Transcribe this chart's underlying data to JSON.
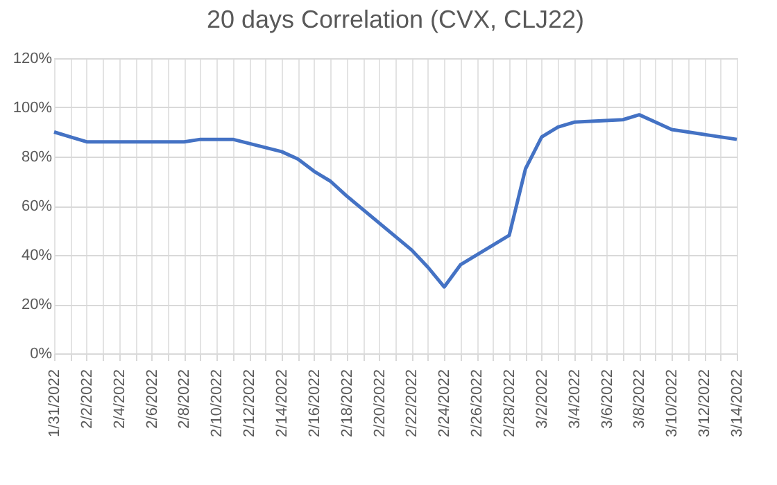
{
  "chart_data": {
    "type": "line",
    "title": "20 days Correlation (CVX, CLJ22)",
    "x": [
      "2022-01-31",
      "2022-02-01",
      "2022-02-02",
      "2022-02-03",
      "2022-02-04",
      "2022-02-07",
      "2022-02-08",
      "2022-02-09",
      "2022-02-10",
      "2022-02-11",
      "2022-02-14",
      "2022-02-15",
      "2022-02-16",
      "2022-02-17",
      "2022-02-18",
      "2022-02-22",
      "2022-02-23",
      "2022-02-24",
      "2022-02-25",
      "2022-02-28",
      "2022-03-01",
      "2022-03-02",
      "2022-03-03",
      "2022-03-04",
      "2022-03-07",
      "2022-03-08",
      "2022-03-09",
      "2022-03-10",
      "2022-03-11",
      "2022-03-14"
    ],
    "series": [
      {
        "color": "#4472c4",
        "values": [
          90,
          88,
          86,
          86,
          86,
          86,
          86,
          87,
          87,
          87,
          82,
          79,
          74,
          70,
          64,
          42,
          35,
          27,
          36,
          48,
          75,
          88,
          92,
          94,
          95,
          97,
          94,
          91,
          90,
          87
        ]
      }
    ],
    "xlim": [
      "2022-01-31",
      "2022-03-14"
    ],
    "xticks": [
      {
        "value": "2022-01-31",
        "label": "1/31/2022"
      },
      {
        "value": "2022-02-01",
        "label": null
      },
      {
        "value": "2022-02-02",
        "label": "2/2/2022"
      },
      {
        "value": "2022-02-03",
        "label": null
      },
      {
        "value": "2022-02-04",
        "label": "2/4/2022"
      },
      {
        "value": "2022-02-05",
        "label": null
      },
      {
        "value": "2022-02-06",
        "label": "2/6/2022"
      },
      {
        "value": "2022-02-07",
        "label": null
      },
      {
        "value": "2022-02-08",
        "label": "2/8/2022"
      },
      {
        "value": "2022-02-09",
        "label": null
      },
      {
        "value": "2022-02-10",
        "label": "2/10/2022"
      },
      {
        "value": "2022-02-11",
        "label": null
      },
      {
        "value": "2022-02-12",
        "label": "2/12/2022"
      },
      {
        "value": "2022-02-13",
        "label": null
      },
      {
        "value": "2022-02-14",
        "label": "2/14/2022"
      },
      {
        "value": "2022-02-15",
        "label": null
      },
      {
        "value": "2022-02-16",
        "label": "2/16/2022"
      },
      {
        "value": "2022-02-17",
        "label": null
      },
      {
        "value": "2022-02-18",
        "label": "2/18/2022"
      },
      {
        "value": "2022-02-19",
        "label": null
      },
      {
        "value": "2022-02-20",
        "label": "2/20/2022"
      },
      {
        "value": "2022-02-21",
        "label": null
      },
      {
        "value": "2022-02-22",
        "label": "2/22/2022"
      },
      {
        "value": "2022-02-23",
        "label": null
      },
      {
        "value": "2022-02-24",
        "label": "2/24/2022"
      },
      {
        "value": "2022-02-25",
        "label": null
      },
      {
        "value": "2022-02-26",
        "label": "2/26/2022"
      },
      {
        "value": "2022-02-27",
        "label": null
      },
      {
        "value": "2022-02-28",
        "label": "2/28/2022"
      },
      {
        "value": "2022-03-01",
        "label": null
      },
      {
        "value": "2022-03-02",
        "label": "3/2/2022"
      },
      {
        "value": "2022-03-03",
        "label": null
      },
      {
        "value": "2022-03-04",
        "label": "3/4/2022"
      },
      {
        "value": "2022-03-05",
        "label": null
      },
      {
        "value": "2022-03-06",
        "label": "3/6/2022"
      },
      {
        "value": "2022-03-07",
        "label": null
      },
      {
        "value": "2022-03-08",
        "label": "3/8/2022"
      },
      {
        "value": "2022-03-09",
        "label": null
      },
      {
        "value": "2022-03-10",
        "label": "3/10/2022"
      },
      {
        "value": "2022-03-11",
        "label": null
      },
      {
        "value": "2022-03-12",
        "label": "3/12/2022"
      },
      {
        "value": "2022-03-13",
        "label": null
      },
      {
        "value": "2022-03-14",
        "label": "3/14/2022"
      }
    ],
    "ylim": [
      0,
      120
    ],
    "yticks": [
      {
        "value": 0,
        "label": "0%"
      },
      {
        "value": 20,
        "label": "20%"
      },
      {
        "value": 40,
        "label": "40%"
      },
      {
        "value": 60,
        "label": "60%"
      },
      {
        "value": 80,
        "label": "80%"
      },
      {
        "value": 100,
        "label": "100%"
      },
      {
        "value": 120,
        "label": "120%"
      }
    ],
    "grid": true,
    "marker": "none",
    "line_style": "solid",
    "legend": false
  }
}
